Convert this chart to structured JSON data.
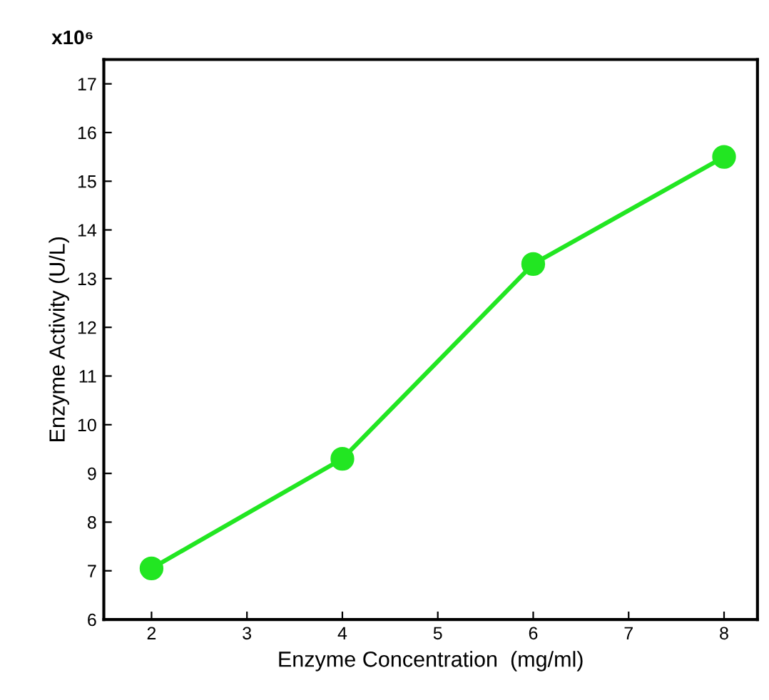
{
  "chart_data": {
    "type": "line",
    "xlabel": "Enzyme Concentration  (mg/ml)",
    "ylabel": "Enzyme Activity (U/L)",
    "annotations": [
      "x10⁶"
    ],
    "x": [
      2,
      4,
      6,
      8
    ],
    "series": [
      {
        "color": "#22e622",
        "values": [
          7.05,
          9.3,
          13.3,
          15.5
        ]
      }
    ],
    "xlim": [
      1.5,
      8.35
    ],
    "xticks": [
      2,
      3,
      4,
      5,
      6,
      7,
      8
    ],
    "ylim": [
      6,
      17.5
    ],
    "yticks": [
      6,
      7,
      8,
      9,
      10,
      11,
      12,
      13,
      14,
      15,
      16,
      17
    ],
    "marker": "circle",
    "line_style": "solid",
    "grid": false,
    "legend": false
  }
}
